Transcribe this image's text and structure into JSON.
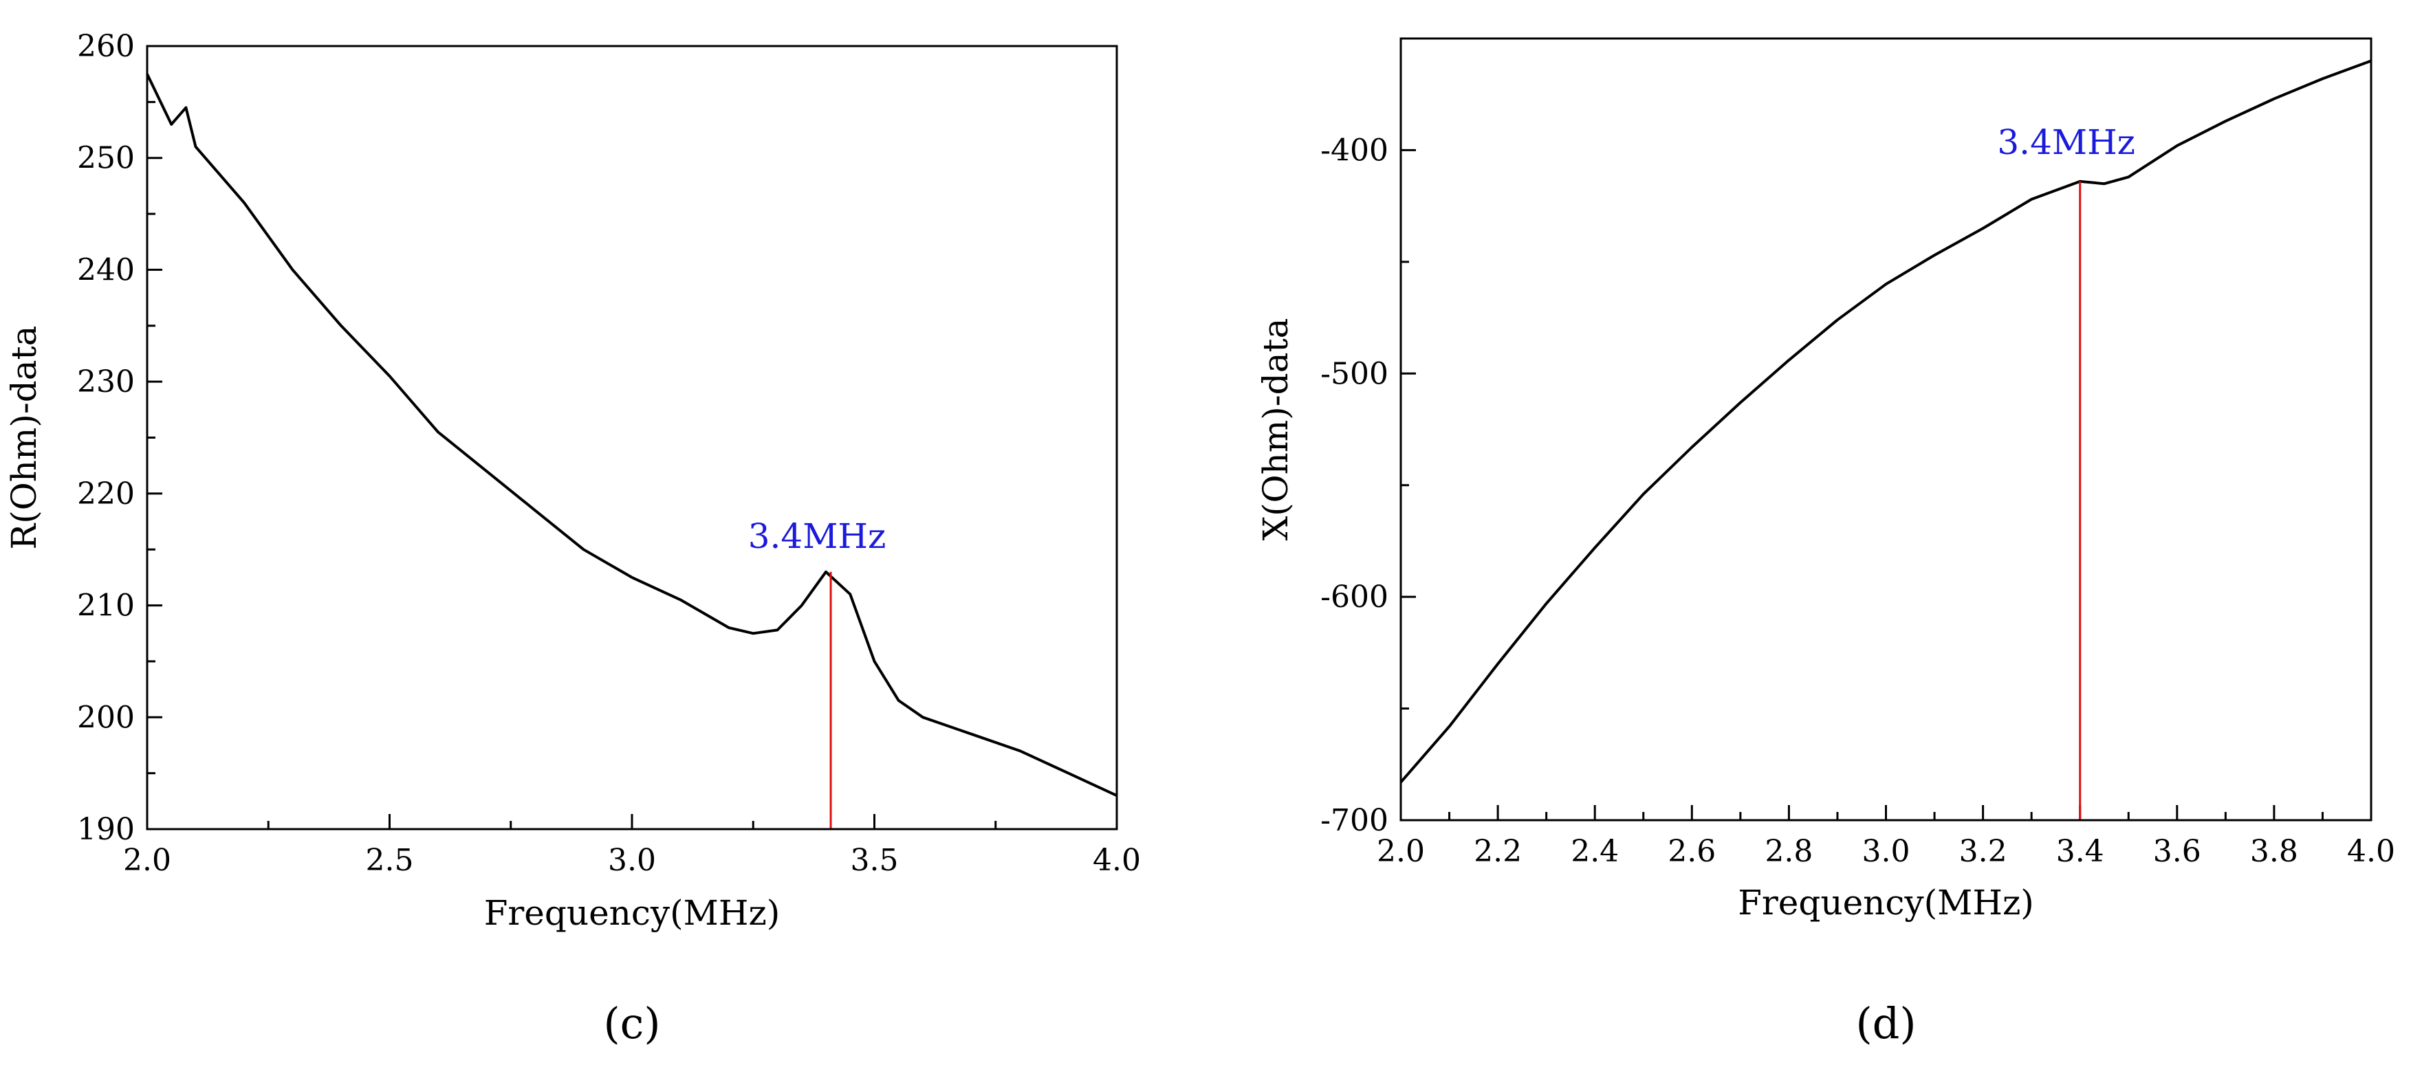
{
  "chart_data": [
    {
      "type": "line",
      "panel_label": "(c)",
      "xlabel": "Frequency(MHz)",
      "ylabel": "R(Ohm)-data",
      "xlim": [
        2.0,
        4.0
      ],
      "ylim": [
        190,
        260
      ],
      "x_ticks": [
        2.0,
        2.5,
        3.0,
        3.5,
        4.0
      ],
      "x_tick_labels": [
        "2.0",
        "2.5",
        "3.0",
        "3.5",
        "4.0"
      ],
      "y_ticks": [
        190,
        200,
        210,
        220,
        230,
        240,
        250,
        260
      ],
      "y_tick_labels": [
        "190",
        "200",
        "210",
        "220",
        "230",
        "240",
        "250",
        "260"
      ],
      "series": [
        {
          "name": "R",
          "color": "#000000",
          "x": [
            2.0,
            2.05,
            2.08,
            2.1,
            2.2,
            2.3,
            2.4,
            2.5,
            2.6,
            2.7,
            2.8,
            2.9,
            3.0,
            3.1,
            3.2,
            3.25,
            3.3,
            3.35,
            3.4,
            3.45,
            3.5,
            3.55,
            3.6,
            3.7,
            3.8,
            3.9,
            4.0
          ],
          "y": [
            257.5,
            253,
            254.5,
            251,
            246,
            240,
            235,
            230.5,
            225.5,
            222,
            218.5,
            215,
            212.5,
            210.5,
            208,
            207.5,
            207.8,
            210,
            213,
            211,
            205,
            201.5,
            200,
            198.5,
            197,
            195,
            193
          ]
        }
      ],
      "annotation": {
        "label": "3.4MHz",
        "x": 3.41,
        "y_top": 213,
        "color": "#e01010"
      }
    },
    {
      "type": "line",
      "panel_label": "(d)",
      "xlabel": "Frequency(MHz)",
      "ylabel": "X(Ohm)-data",
      "xlim": [
        2.0,
        4.0
      ],
      "ylim": [
        -700,
        -350
      ],
      "x_ticks": [
        2.0,
        2.2,
        2.4,
        2.6,
        2.8,
        3.0,
        3.2,
        3.4,
        3.6,
        3.8,
        4.0
      ],
      "x_tick_labels": [
        "2.0",
        "2.2",
        "2.4",
        "2.6",
        "2.8",
        "3.0",
        "3.2",
        "3.4",
        "3.6",
        "3.8",
        "4.0"
      ],
      "y_ticks": [
        -700,
        -600,
        -500,
        -400
      ],
      "y_tick_labels": [
        "-700",
        "-600",
        "-500",
        "-400"
      ],
      "series": [
        {
          "name": "X",
          "color": "#000000",
          "x": [
            2.0,
            2.1,
            2.2,
            2.3,
            2.4,
            2.5,
            2.6,
            2.7,
            2.8,
            2.9,
            3.0,
            3.1,
            3.2,
            3.3,
            3.4,
            3.45,
            3.5,
            3.6,
            3.7,
            3.8,
            3.9,
            4.0
          ],
          "y": [
            -683,
            -658,
            -630,
            -603,
            -578,
            -554,
            -533,
            -513,
            -494,
            -476,
            -460,
            -447,
            -435,
            -422,
            -414,
            -415,
            -412,
            -398,
            -387,
            -377,
            -368,
            -360
          ]
        }
      ],
      "annotation": {
        "label": "3.4MHz",
        "x": 3.4,
        "y_top": -414,
        "color": "#e01010"
      }
    }
  ]
}
